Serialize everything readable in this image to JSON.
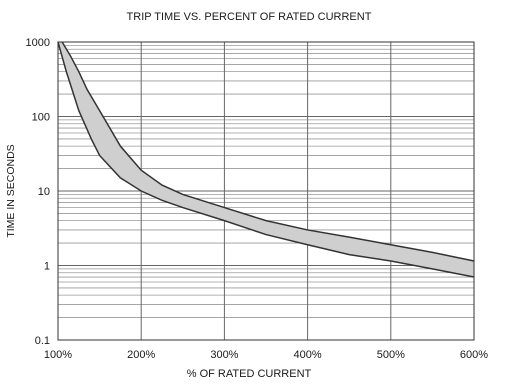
{
  "chart_data": {
    "type": "area",
    "title": "TRIP TIME VS. PERCENT OF RATED CURRENT",
    "xlabel": "% OF RATED CURRENT",
    "ylabel": "TIME IN SECONDS",
    "x_scale": "linear",
    "y_scale": "log",
    "xlim": [
      100,
      600
    ],
    "ylim": [
      0.1,
      1000
    ],
    "x_ticks": [
      "100%",
      "200%",
      "300%",
      "400%",
      "500%",
      "600%"
    ],
    "y_ticks": [
      "0.1",
      "1",
      "10",
      "100",
      "1000"
    ],
    "grid": true,
    "legend": "none",
    "band_fill_color": "#cfcfcf",
    "curve_color": "#333333",
    "series": [
      {
        "x": [
          100,
          110,
          125,
          140,
          150,
          175,
          200,
          225,
          250,
          300,
          350,
          400,
          450,
          500,
          550,
          600
        ],
        "values": [
          1000,
          400,
          120,
          50,
          30,
          15,
          10,
          7.5,
          6,
          4,
          2.6,
          1.9,
          1.4,
          1.15,
          0.9,
          0.7
        ]
      },
      {
        "x": [
          105,
          115,
          125,
          135,
          150,
          175,
          200,
          225,
          250,
          300,
          350,
          400,
          450,
          500,
          550,
          600
        ],
        "values": [
          1000,
          650,
          400,
          230,
          120,
          40,
          19,
          12,
          9,
          6,
          4,
          3,
          2.4,
          1.9,
          1.5,
          1.15
        ]
      }
    ]
  }
}
